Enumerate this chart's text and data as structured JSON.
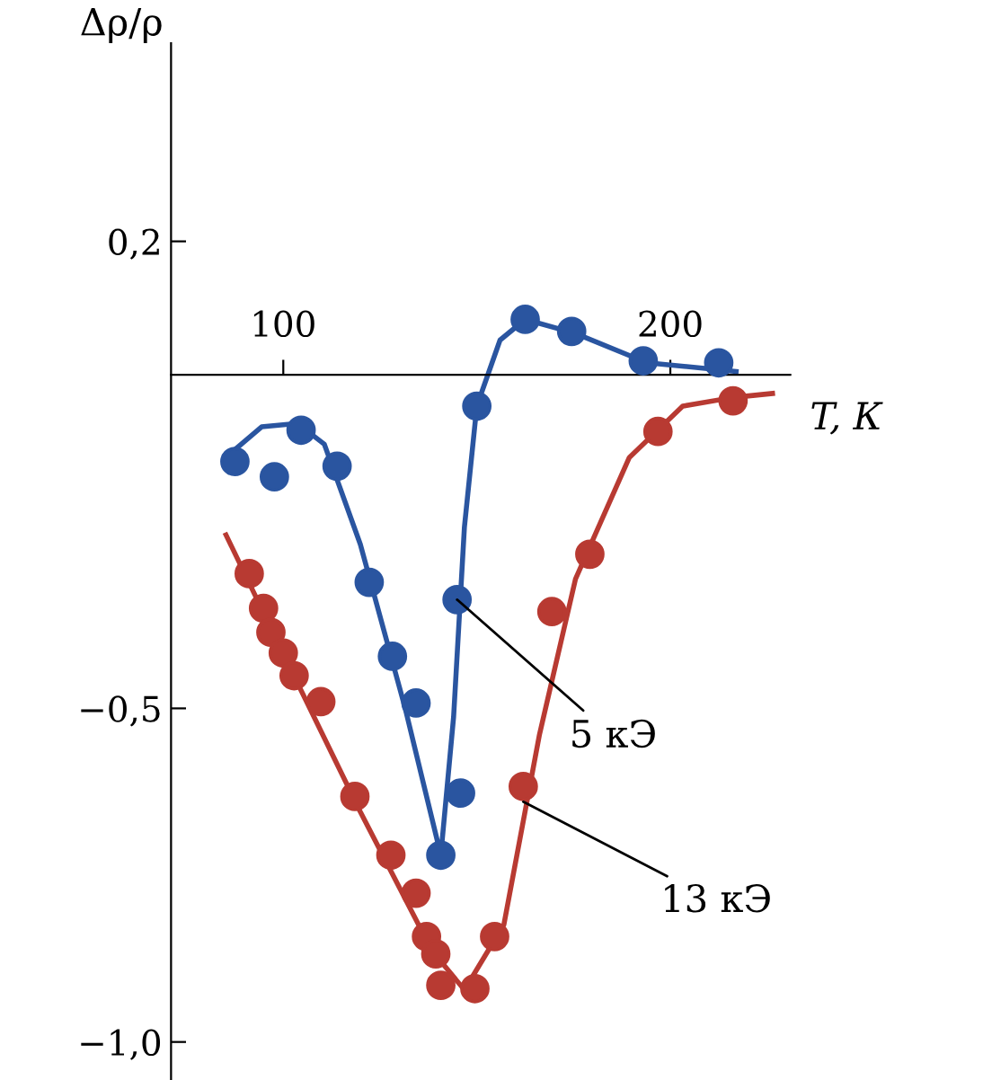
{
  "chart_data": {
    "type": "scatter",
    "xlabel": "T, К",
    "ylabel": "Δρ/ρ",
    "xlim": [
      71,
      231
    ],
    "ylim": [
      -1.057,
      0.497
    ],
    "xticks": [
      100,
      200
    ],
    "yticks": [
      {
        "value": 0.2,
        "label": "0,2"
      },
      {
        "value": -0.5,
        "label": "−0,5"
      },
      {
        "value": -1.0,
        "label": "−1,0"
      }
    ],
    "grid": false,
    "legend": false,
    "series": [
      {
        "type": "line",
        "color": "#2a55a0",
        "line_style": "solid",
        "marker": "none",
        "x": [
          86.1,
          94.4,
          103.7,
          110.6,
          119.9,
          131.5,
          140.7,
          144,
          146.8,
          150,
          156,
          162.5,
          175.5,
          194,
          217
        ],
        "values": [
          -0.119,
          -0.078,
          -0.073,
          -0.104,
          -0.254,
          -0.5,
          -0.72,
          -0.513,
          -0.228,
          -0.047,
          0.052,
          0.083,
          0.062,
          0.018,
          0.005
        ]
      },
      {
        "type": "line",
        "color": "#b83a32",
        "line_style": "solid",
        "marker": "none",
        "x": [
          85.2,
          101.4,
          119.9,
          138.4,
          146.8,
          157,
          166.2,
          175.5,
          189.4,
          203.2,
          216.2,
          226.4
        ],
        "values": [
          -0.24,
          -0.435,
          -0.655,
          -0.863,
          -0.922,
          -0.824,
          -0.539,
          -0.306,
          -0.124,
          -0.047,
          -0.034,
          -0.028
        ]
      },
      {
        "color": "#2a55a0",
        "marker": "circle",
        "x": [
          87.5,
          97.7,
          104.6,
          113.9,
          122.2,
          128.2,
          134.3,
          140.7,
          145.8,
          144.9,
          150,
          162.5,
          174.5,
          193,
          212.5
        ],
        "values": [
          -0.13,
          -0.153,
          -0.083,
          -0.137,
          -0.311,
          -0.422,
          -0.492,
          -0.72,
          -0.627,
          -0.337,
          -0.047,
          0.083,
          0.065,
          0.021,
          0.018
        ]
      },
      {
        "color": "#b83a32",
        "marker": "circle",
        "x": [
          91.2,
          94.9,
          96.8,
          100,
          102.8,
          109.7,
          118.5,
          127.8,
          134.3,
          137,
          139.4,
          140.7,
          149.5,
          154.6,
          162,
          169.4,
          179.2,
          196.8,
          216.2
        ],
        "values": [
          -0.298,
          -0.35,
          -0.386,
          -0.417,
          -0.451,
          -0.49,
          -0.632,
          -0.72,
          -0.777,
          -0.842,
          -0.868,
          -0.915,
          -0.92,
          -0.842,
          -0.617,
          -0.355,
          -0.269,
          -0.085,
          -0.039
        ]
      }
    ],
    "annotations": [
      {
        "text": "5 кЭ",
        "x": 144.9,
        "y": -0.337
      },
      {
        "text": "13 кЭ",
        "x": 162,
        "y": -0.64
      }
    ]
  }
}
